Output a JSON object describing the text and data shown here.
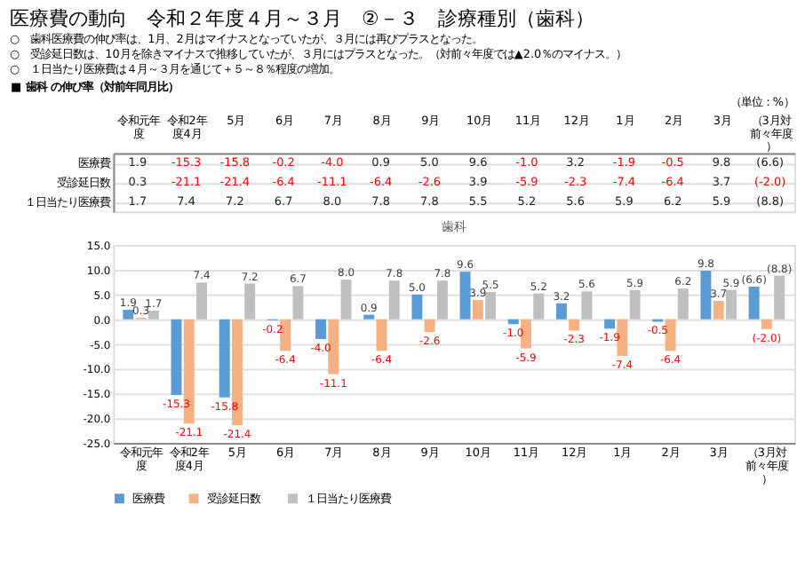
{
  "chart_data": {
    "type": "bar",
    "title": "歯科",
    "annotations": [
      "医療費の動向　令和２年度４月～３月　②－３　診療種別（歯科）",
      "○　歯科医療費の伸び率は、1月、2月はマイナスとなっていたが、３月には再びプラスとなった。",
      "○　受診延日数は、10月を除きマイナスで推移していたが、３月にはプラスとなった。（対前々年度では▲2.0％のマイナス。）",
      "○　１日当たり医療費は４月～３月を通じて＋５～８％程度の増加。",
      "■ 歯科 の伸び率（対前年同月比）",
      "（単位：%）"
    ],
    "categories": [
      "令和元年度",
      "令和2年度4月",
      "5月",
      "6月",
      "7月",
      "8月",
      "9月",
      "10月",
      "11月",
      "12月",
      "1月",
      "2月",
      "3月",
      "（3月対前々年度）"
    ],
    "series": [
      {
        "name": "医療費",
        "color": "#5b9bd5",
        "values": [
          1.9,
          -15.3,
          -15.8,
          -0.2,
          -4.0,
          0.9,
          5.0,
          9.6,
          -1.0,
          3.2,
          -1.9,
          -0.5,
          9.8,
          6.6
        ],
        "value_labels": [
          "1.9",
          "-15.3",
          "-15.8",
          "-0.2",
          "-4.0",
          "0.9",
          "5.0",
          "9.6",
          "-1.0",
          "3.2",
          "-1.9",
          "-0.5",
          "9.8",
          "(6.6)"
        ]
      },
      {
        "name": "受診延日数",
        "color": "#f4b183",
        "values": [
          0.3,
          -21.1,
          -21.4,
          -6.4,
          -11.1,
          -6.4,
          -2.6,
          3.9,
          -5.9,
          -2.3,
          -7.4,
          -6.4,
          3.7,
          -2.0
        ],
        "value_labels": [
          "0.3",
          "-21.1",
          "-21.4",
          "-6.4",
          "-11.1",
          "-6.4",
          "-2.6",
          "3.9",
          "-5.9",
          "-2.3",
          "-7.4",
          "-6.4",
          "3.7",
          "(-2.0)"
        ]
      },
      {
        "name": "１日当たり医療費",
        "color": "#bfbfbf",
        "values": [
          1.7,
          7.4,
          7.2,
          6.7,
          8.0,
          7.8,
          7.8,
          5.5,
          5.2,
          5.6,
          5.9,
          6.2,
          5.9,
          8.8
        ],
        "value_labels": [
          "1.7",
          "7.4",
          "7.2",
          "6.7",
          "8.0",
          "7.8",
          "7.8",
          "5.5",
          "5.2",
          "5.6",
          "5.9",
          "6.2",
          "5.9",
          "(8.8)"
        ]
      }
    ],
    "ylim": [
      -25,
      15
    ],
    "yticks": [
      {
        "value": -25,
        "label": "-25.0"
      },
      {
        "value": -20,
        "label": "-20.0"
      },
      {
        "value": -15,
        "label": "-15.0"
      },
      {
        "value": -10,
        "label": "-10.0"
      },
      {
        "value": -5,
        "label": "-5.0"
      },
      {
        "value": 0,
        "label": "0.0"
      },
      {
        "value": 5,
        "label": "5.0"
      },
      {
        "value": 10,
        "label": "10.0"
      },
      {
        "value": 15,
        "label": "15.0"
      }
    ],
    "grid": "y",
    "legend": "bottom"
  }
}
